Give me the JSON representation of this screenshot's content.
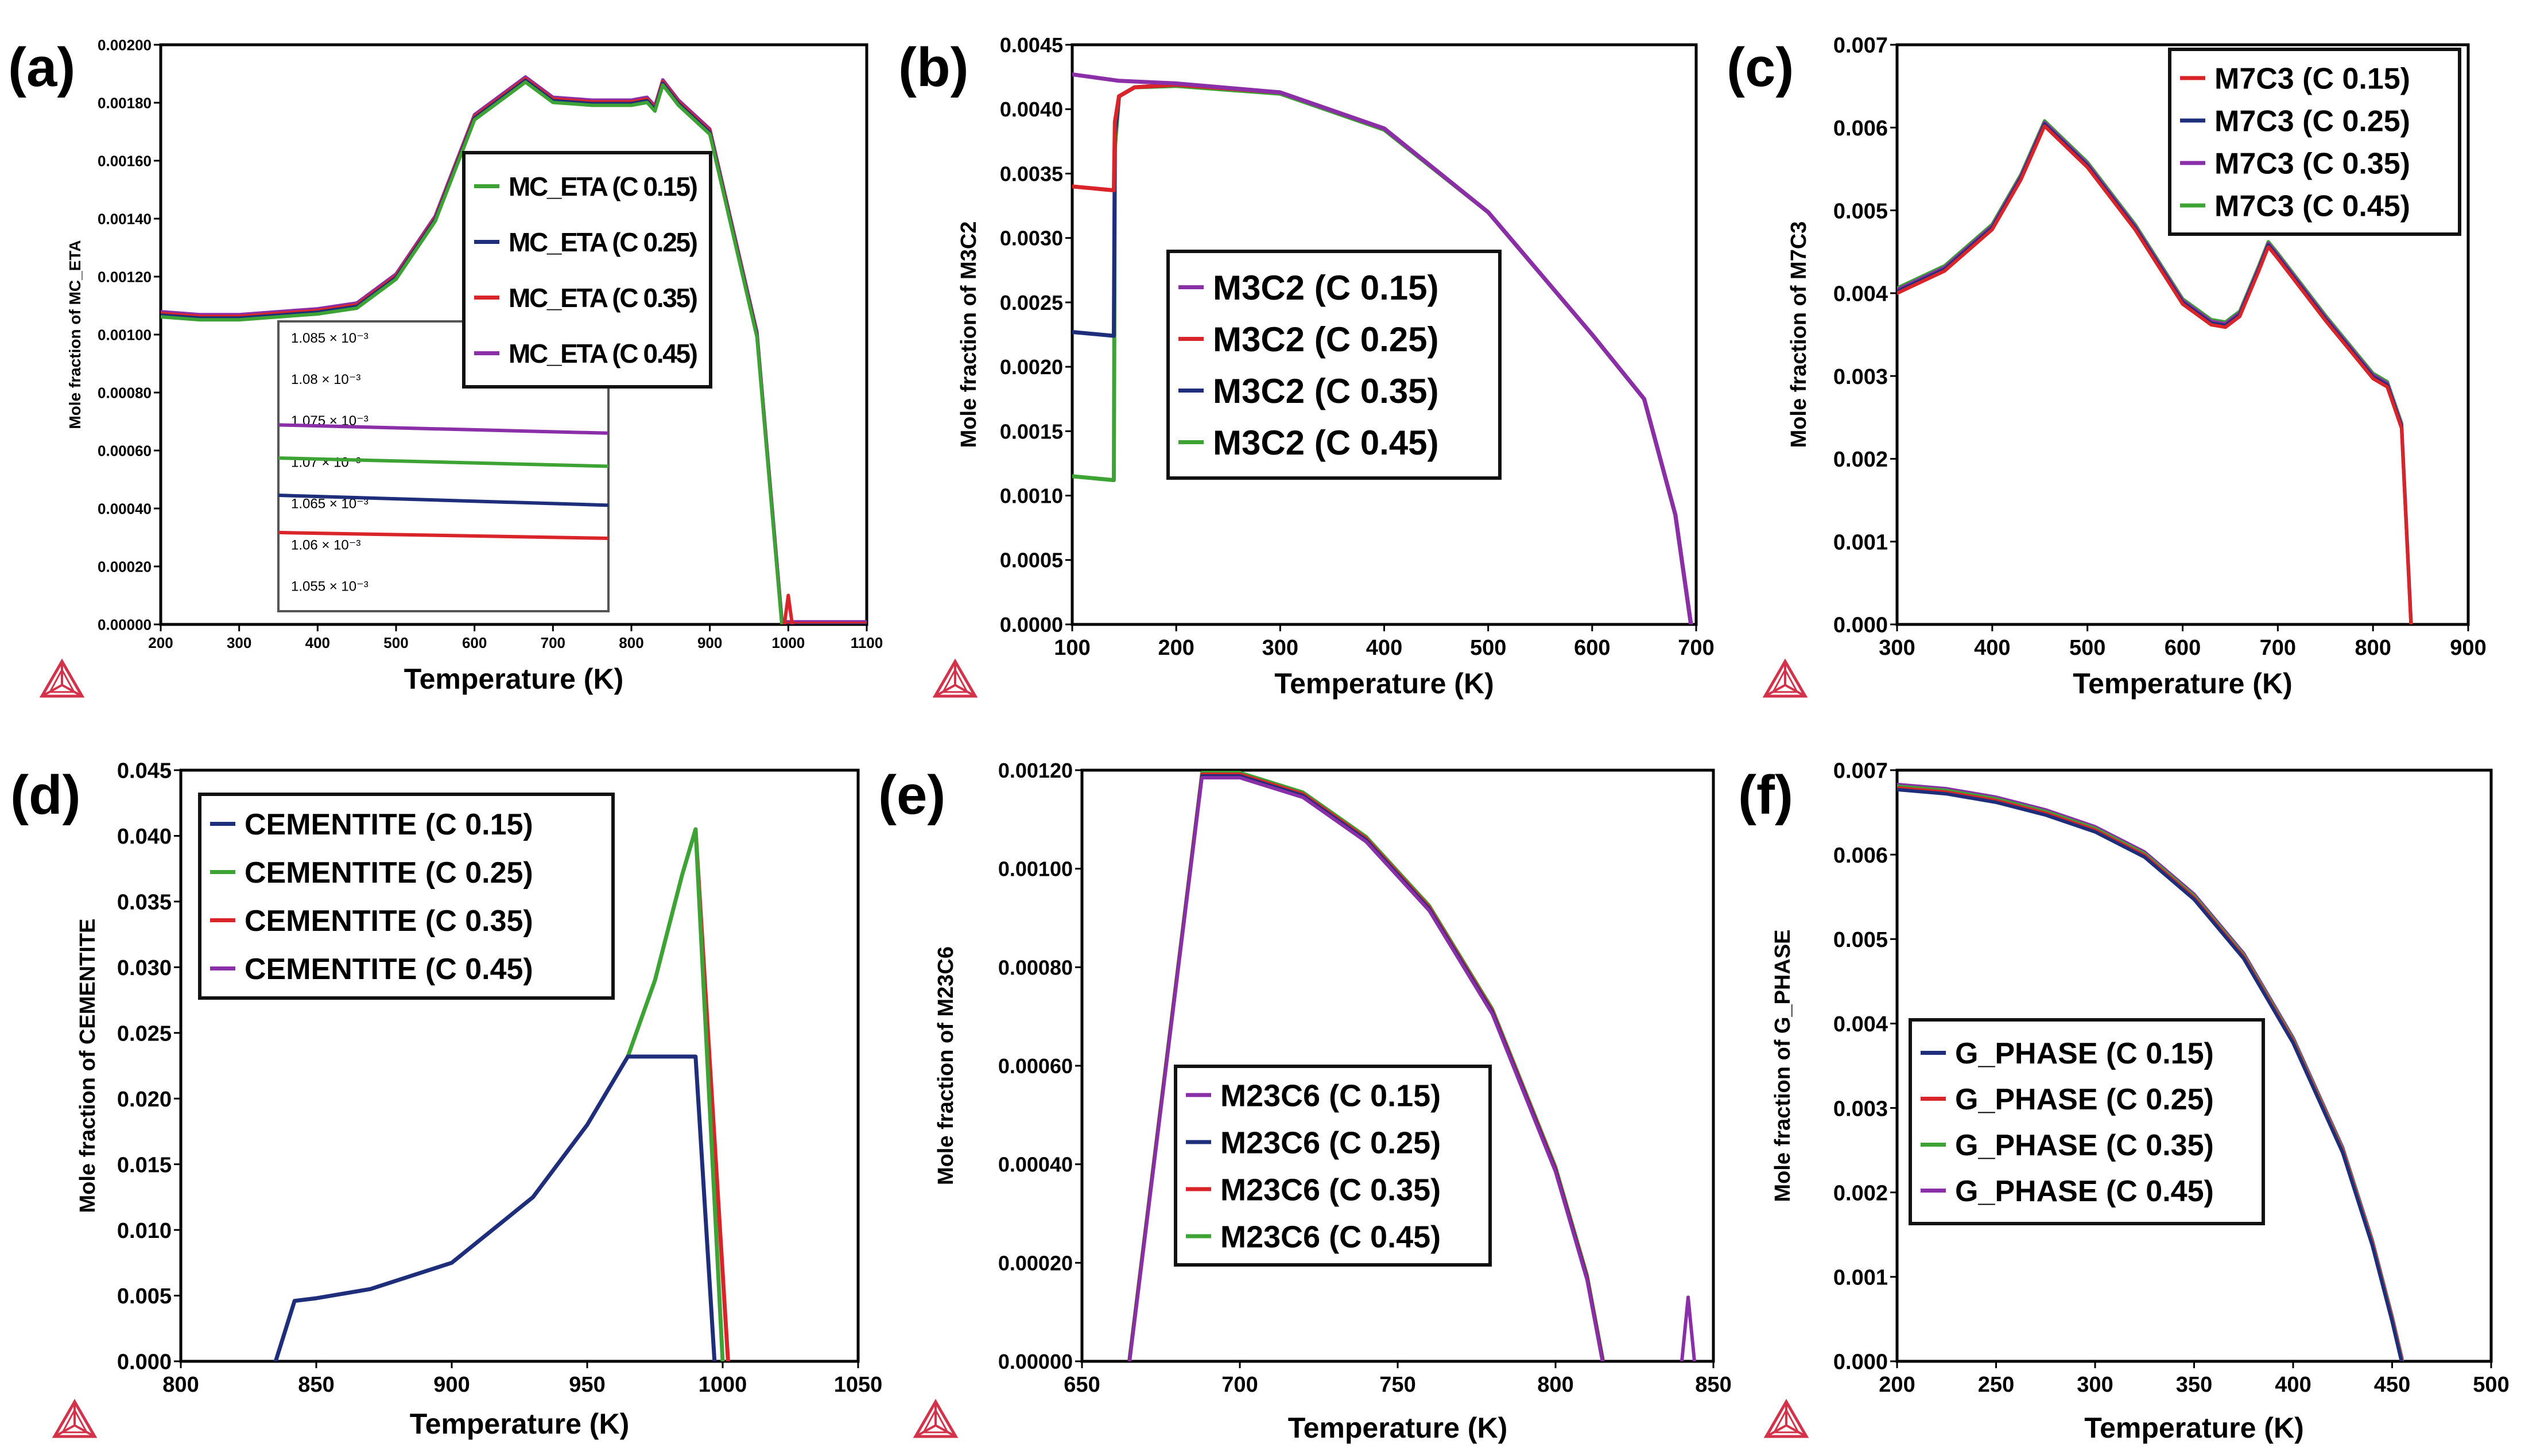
{
  "figure": {
    "caption": ""
  },
  "colors": {
    "green": "#3ea335",
    "blue": "#1f2e7a",
    "red": "#d9252a",
    "purple": "#8a2fa8",
    "logo": "#d2334a"
  },
  "chart_data": [
    {
      "panel_label": "(a)",
      "type": "line",
      "xlabel": "Temperature (K)",
      "ylabel": "Mole fraction of MC_ETA",
      "xlim": [
        200,
        1100
      ],
      "ylim": [
        0,
        0.002
      ],
      "xticks": [
        "200",
        "300",
        "400",
        "500",
        "600",
        "700",
        "800",
        "900",
        "1000",
        "1100"
      ],
      "yticks": [
        "0.00000",
        "0.00020",
        "0.00040",
        "0.00060",
        "0.00080",
        "0.00100",
        "0.00120",
        "0.00140",
        "0.00160",
        "0.00180",
        "0.00200"
      ],
      "legend_position": "center-right",
      "series": [
        {
          "name": "MC_ETA (C 0.15)",
          "color": "green"
        },
        {
          "name": "MC_ETA (C 0.25)",
          "color": "blue"
        },
        {
          "name": "MC_ETA (C 0.35)",
          "color": "red"
        },
        {
          "name": "MC_ETA (C 0.45)",
          "color": "purple"
        }
      ],
      "main_curve": {
        "x": [
          200,
          250,
          300,
          350,
          400,
          450,
          500,
          550,
          600,
          650,
          665,
          700,
          750,
          800,
          820,
          830,
          840,
          860,
          900,
          960,
          992,
          1000,
          1100
        ],
        "y": [
          0.00107,
          0.00106,
          0.00106,
          0.00107,
          0.00108,
          0.0011,
          0.0012,
          0.0014,
          0.00175,
          0.00185,
          0.00188,
          0.00181,
          0.0018,
          0.0018,
          0.00181,
          0.00178,
          0.00187,
          0.0018,
          0.0017,
          0.001,
          0.0,
          0.0,
          0.0
        ]
      },
      "spike": {
        "x": [
          995,
          1000,
          1005
        ],
        "y": [
          0.0,
          0.0001,
          0.0
        ]
      },
      "inset": {
        "yticks": [
          "1.085 × 10⁻³",
          "1.08 × 10⁻³",
          "1.075 × 10⁻³",
          "1.07 × 10⁻³",
          "1.065 × 10⁻³",
          "1.06 × 10⁻³",
          "1.055 × 10⁻³"
        ],
        "ylim": [
          1.052,
          1.087
        ],
        "lines": [
          {
            "color": "purple",
            "start": 1.0745,
            "end": 1.0735
          },
          {
            "color": "green",
            "start": 1.0705,
            "end": 1.0695
          },
          {
            "color": "blue",
            "start": 1.066,
            "end": 1.0648
          },
          {
            "color": "red",
            "start": 1.0615,
            "end": 1.0608
          }
        ]
      }
    },
    {
      "panel_label": "(b)",
      "type": "line",
      "xlabel": "Temperature (K)",
      "ylabel": "Mole fraction of M3C2",
      "xlim": [
        100,
        700
      ],
      "ylim": [
        0,
        0.0045
      ],
      "xticks": [
        "100",
        "200",
        "300",
        "400",
        "500",
        "600",
        "700"
      ],
      "yticks": [
        "0.0000",
        "0.0005",
        "0.0010",
        "0.0015",
        "0.0020",
        "0.0025",
        "0.0030",
        "0.0035",
        "0.0040",
        "0.0045"
      ],
      "legend_position": "center",
      "series": [
        {
          "name": "M3C2 (C 0.15)",
          "color": "purple",
          "x": [
            100,
            145,
            200,
            300,
            400,
            500,
            600,
            650,
            680,
            695
          ],
          "y": [
            0.00427,
            0.00422,
            0.0042,
            0.00413,
            0.00385,
            0.0032,
            0.00225,
            0.00175,
            0.00085,
            0.0
          ]
        },
        {
          "name": "M3C2 (C 0.25)",
          "color": "red",
          "x": [
            100,
            140,
            141,
            145,
            160,
            200,
            300,
            400,
            500,
            600,
            650,
            680,
            695
          ],
          "y": [
            0.0034,
            0.00337,
            0.0039,
            0.0041,
            0.00417,
            0.00419,
            0.00413,
            0.00385,
            0.0032,
            0.00225,
            0.00175,
            0.00085,
            0.0
          ]
        },
        {
          "name": "M3C2 (C 0.35)",
          "color": "blue",
          "x": [
            100,
            140,
            141,
            145,
            160,
            200,
            300,
            400,
            500,
            600,
            650,
            680,
            695
          ],
          "y": [
            0.00227,
            0.00224,
            0.0038,
            0.0041,
            0.00417,
            0.00419,
            0.00413,
            0.00385,
            0.0032,
            0.00225,
            0.00175,
            0.00085,
            0.0
          ]
        },
        {
          "name": "M3C2 (C 0.45)",
          "color": "green",
          "x": [
            100,
            140,
            141,
            145,
            160,
            200,
            300,
            400,
            500,
            600,
            650,
            680,
            695
          ],
          "y": [
            0.00115,
            0.00112,
            0.0037,
            0.0041,
            0.00417,
            0.00418,
            0.00412,
            0.00384,
            0.0032,
            0.00225,
            0.00175,
            0.00085,
            0.0
          ]
        }
      ]
    },
    {
      "panel_label": "(c)",
      "type": "line",
      "xlabel": "Temperature (K)",
      "ylabel": "Mole fraction of M7C3",
      "xlim": [
        300,
        900
      ],
      "ylim": [
        0,
        0.007
      ],
      "xticks": [
        "300",
        "400",
        "500",
        "600",
        "700",
        "800",
        "900"
      ],
      "yticks": [
        "0.000",
        "0.001",
        "0.002",
        "0.003",
        "0.004",
        "0.005",
        "0.006",
        "0.007"
      ],
      "legend_position": "top-right",
      "series": [
        {
          "name": "M7C3 (C 0.15)",
          "color": "red"
        },
        {
          "name": "M7C3 (C 0.25)",
          "color": "blue"
        },
        {
          "name": "M7C3 (C 0.35)",
          "color": "purple"
        },
        {
          "name": "M7C3 (C 0.45)",
          "color": "green"
        }
      ],
      "main_curve": {
        "x": [
          300,
          350,
          400,
          430,
          455,
          500,
          550,
          600,
          630,
          645,
          660,
          680,
          690,
          700,
          750,
          800,
          815,
          830,
          840
        ],
        "y": [
          0.00403,
          0.0043,
          0.0048,
          0.0054,
          0.00605,
          0.00555,
          0.0048,
          0.0039,
          0.00365,
          0.00362,
          0.00375,
          0.0043,
          0.00459,
          0.00445,
          0.0037,
          0.003,
          0.0029,
          0.0024,
          0.0
        ]
      }
    },
    {
      "panel_label": "(d)",
      "type": "line",
      "xlabel": "Temperature (K)",
      "ylabel": "Mole fraction of CEMENTITE",
      "xlim": [
        800,
        1050
      ],
      "ylim": [
        0,
        0.045
      ],
      "xticks": [
        "800",
        "850",
        "900",
        "950",
        "1000",
        "1050"
      ],
      "yticks": [
        "0.000",
        "0.005",
        "0.010",
        "0.015",
        "0.020",
        "0.025",
        "0.030",
        "0.035",
        "0.040",
        "0.045"
      ],
      "legend_position": "top-left",
      "series": [
        {
          "name": "CEMENTITE (C 0.15)",
          "color": "blue",
          "x": [
            835,
            842,
            850,
            870,
            900,
            930,
            950,
            965,
            990,
            997
          ],
          "y": [
            0.0,
            0.0046,
            0.0048,
            0.0055,
            0.0075,
            0.0125,
            0.018,
            0.0232,
            0.0232,
            0.0
          ]
        },
        {
          "name": "CEMENTITE (C 0.25)",
          "color": "green",
          "x": [
            965,
            975,
            985,
            990,
            1000
          ],
          "y": [
            0.0232,
            0.029,
            0.037,
            0.0405,
            0.0
          ]
        },
        {
          "name": "CEMENTITE (C 0.35)",
          "color": "red",
          "x": [
            990,
            1002
          ],
          "y": [
            0.0405,
            0.0
          ]
        },
        {
          "name": "CEMENTITE (C 0.45)",
          "color": "purple",
          "x": [],
          "y": []
        }
      ]
    },
    {
      "panel_label": "(e)",
      "type": "line",
      "xlabel": "Temperature (K)",
      "ylabel": "Mole fraction of M23C6",
      "xlim": [
        650,
        850
      ],
      "ylim": [
        0,
        0.0012
      ],
      "xticks": [
        "650",
        "700",
        "750",
        "800",
        "850"
      ],
      "yticks": [
        "0.00000",
        "0.00020",
        "0.00040",
        "0.00060",
        "0.00080",
        "0.00100",
        "0.00120"
      ],
      "legend_position": "bottom-center",
      "series": [
        {
          "name": "M23C6 (C 0.15)",
          "color": "purple"
        },
        {
          "name": "M23C6 (C 0.25)",
          "color": "blue"
        },
        {
          "name": "M23C6 (C 0.35)",
          "color": "red"
        },
        {
          "name": "M23C6 (C 0.45)",
          "color": "green"
        }
      ],
      "main_curve": {
        "x": [
          665,
          688,
          700,
          720,
          740,
          760,
          780,
          800,
          810,
          815
        ],
        "y": [
          0.0,
          0.00119,
          0.00119,
          0.00115,
          0.00106,
          0.00092,
          0.00071,
          0.00039,
          0.00017,
          0.0
        ]
      },
      "spike": {
        "x": [
          840,
          842,
          844
        ],
        "y": [
          0.0,
          0.00013,
          0.0
        ]
      }
    },
    {
      "panel_label": "(f)",
      "type": "line",
      "xlabel": "Temperature (K)",
      "ylabel": "Mole fraction of G_PHASE",
      "xlim": [
        200,
        500
      ],
      "ylim": [
        0,
        0.007
      ],
      "xticks": [
        "200",
        "250",
        "300",
        "350",
        "400",
        "450",
        "500"
      ],
      "yticks": [
        "0.000",
        "0.001",
        "0.002",
        "0.003",
        "0.004",
        "0.005",
        "0.006",
        "0.007"
      ],
      "legend_position": "bottom-left",
      "series": [
        {
          "name": "G_PHASE (C 0.15)",
          "color": "blue"
        },
        {
          "name": "G_PHASE (C 0.25)",
          "color": "red"
        },
        {
          "name": "G_PHASE (C 0.35)",
          "color": "green"
        },
        {
          "name": "G_PHASE (C 0.45)",
          "color": "purple"
        }
      ],
      "main_curve": {
        "x": [
          200,
          225,
          250,
          275,
          300,
          325,
          350,
          375,
          400,
          425,
          440,
          450,
          455
        ],
        "y": [
          0.0068,
          0.00675,
          0.00665,
          0.0065,
          0.0063,
          0.006,
          0.0055,
          0.0048,
          0.0038,
          0.0025,
          0.0014,
          0.0005,
          0.0
        ]
      }
    }
  ]
}
